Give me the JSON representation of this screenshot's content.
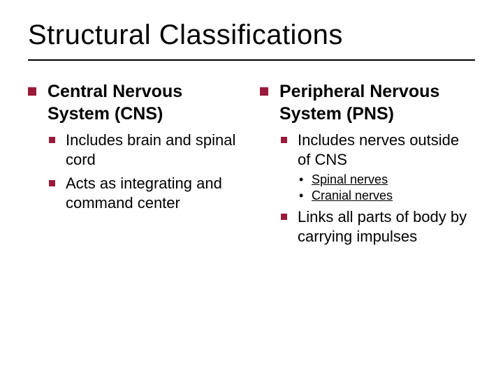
{
  "colors": {
    "background": "#ffffff",
    "text": "#000000",
    "bullet": "#9a1a3a",
    "rule": "#000000"
  },
  "typography": {
    "title_fontsize": 40,
    "lvl1_fontsize": 25,
    "lvl2_fontsize": 22,
    "lvl3_fontsize": 18,
    "font_family": "Verdana"
  },
  "title": "Structural Classifications",
  "left": {
    "heading": "Central Nervous System (CNS)",
    "items": [
      {
        "text": "Includes brain and spinal cord"
      },
      {
        "text": "Acts as integrating and command center"
      }
    ]
  },
  "right": {
    "heading": "Peripheral Nervous System (PNS)",
    "items": [
      {
        "text": "Includes nerves outside of CNS",
        "subitems": [
          {
            "text": "Spinal nerves"
          },
          {
            "text": "Cranial nerves"
          }
        ]
      },
      {
        "text": "Links all parts of body by carrying impulses"
      }
    ]
  }
}
